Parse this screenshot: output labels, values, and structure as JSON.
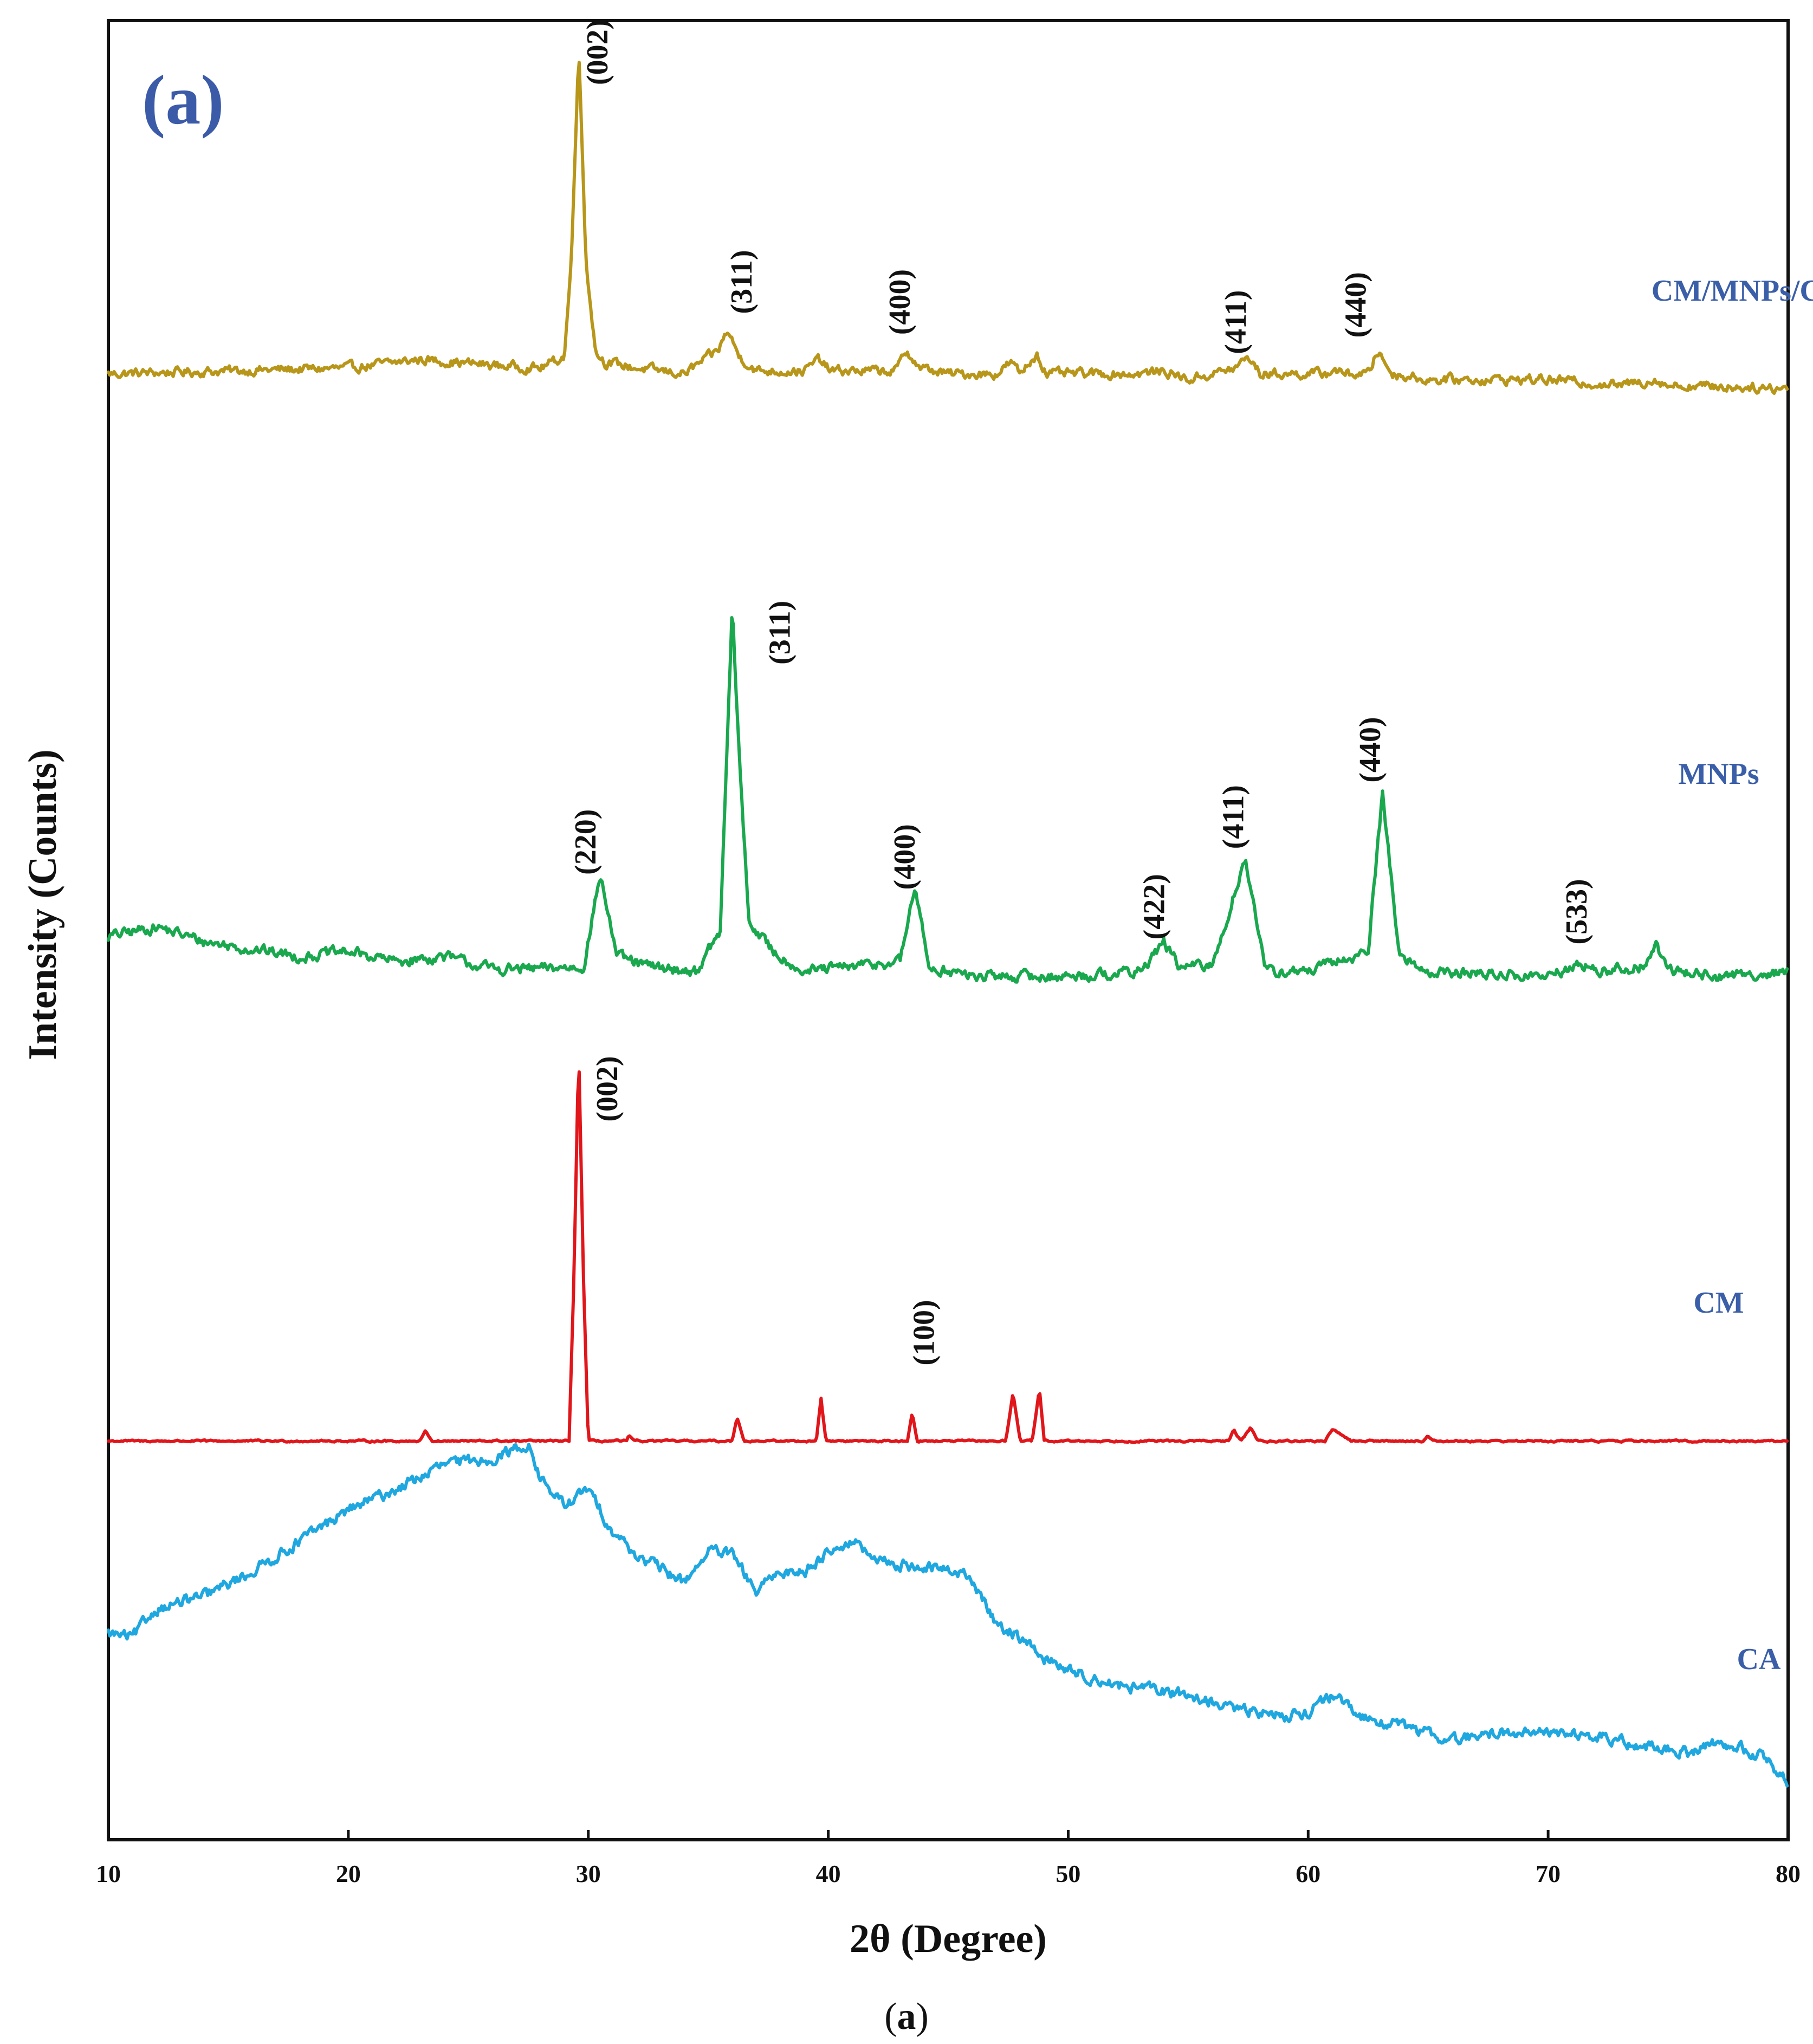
{
  "panel_tag": "(a)",
  "caption": {
    "open": "(",
    "letter": "a",
    "close": ")"
  },
  "chart_data": {
    "type": "line",
    "title": "",
    "xlabel": "2θ (Degree)",
    "ylabel": "Intensity (Counts)",
    "xlim": [
      10,
      80
    ],
    "xticks": [
      10,
      20,
      30,
      40,
      50,
      60,
      70,
      80
    ],
    "yticks": [],
    "grid": false,
    "legend": "inline labels on right",
    "series": [
      {
        "name": "CM/MNPs/CA",
        "color": "#b8961a",
        "noise": 3,
        "points": [
          [
            10,
            0
          ],
          [
            20,
            2
          ],
          [
            23,
            5
          ],
          [
            26,
            3
          ],
          [
            28,
            2
          ],
          [
            29,
            6
          ],
          [
            29.3,
            40
          ],
          [
            29.6,
            115
          ],
          [
            29.9,
            40
          ],
          [
            30.3,
            8
          ],
          [
            30.7,
            4
          ],
          [
            32,
            2
          ],
          [
            34,
            0
          ],
          [
            35.4,
            8
          ],
          [
            35.8,
            15
          ],
          [
            36.3,
            6
          ],
          [
            37,
            1
          ],
          [
            39,
            1
          ],
          [
            39.6,
            5
          ],
          [
            40.1,
            1
          ],
          [
            42.8,
            1
          ],
          [
            43.3,
            8
          ],
          [
            43.8,
            2
          ],
          [
            45,
            0
          ],
          [
            47,
            0
          ],
          [
            47.6,
            4
          ],
          [
            48,
            0
          ],
          [
            48.7,
            7
          ],
          [
            49.1,
            0
          ],
          [
            53,
            0
          ],
          [
            54,
            1
          ],
          [
            55,
            -2
          ],
          [
            57,
            2
          ],
          [
            57.5,
            6
          ],
          [
            58,
            0
          ],
          [
            60.8,
            0
          ],
          [
            61.1,
            2
          ],
          [
            61.4,
            0
          ],
          [
            62.5,
            0
          ],
          [
            62.9,
            8
          ],
          [
            63.5,
            0
          ],
          [
            65,
            -2
          ],
          [
            70,
            -2
          ],
          [
            73,
            -4
          ],
          [
            74.5,
            -2
          ],
          [
            75,
            -4
          ],
          [
            80,
            -5
          ]
        ],
        "peaks": [
          {
            "label": "(002)",
            "x": 30.8,
            "y": 112
          },
          {
            "label": "(311)",
            "x": 36.8,
            "y": 32
          },
          {
            "label": "(400)",
            "x": 43.4,
            "y": 25
          },
          {
            "label": "(411)",
            "x": 57.4,
            "y": 18
          },
          {
            "label": "(440)",
            "x": 62.4,
            "y": 24
          }
        ]
      },
      {
        "name": "MNPs",
        "color": "#1aa84e",
        "noise": 4,
        "points": [
          [
            10,
            10
          ],
          [
            12,
            14
          ],
          [
            14,
            8
          ],
          [
            16,
            5
          ],
          [
            18,
            2
          ],
          [
            20,
            4
          ],
          [
            22,
            0
          ],
          [
            24,
            2
          ],
          [
            26,
            -3
          ],
          [
            28,
            -3
          ],
          [
            29.8,
            -2
          ],
          [
            30.5,
            35
          ],
          [
            31.2,
            2
          ],
          [
            32.5,
            -2
          ],
          [
            34.5,
            -4
          ],
          [
            35.5,
            12
          ],
          [
            35.8,
            90
          ],
          [
            36.0,
            142
          ],
          [
            36.3,
            80
          ],
          [
            36.7,
            16
          ],
          [
            37.7,
            4
          ],
          [
            39,
            -4
          ],
          [
            43,
            0
          ],
          [
            43.6,
            30
          ],
          [
            44.2,
            -2
          ],
          [
            46,
            -6
          ],
          [
            50,
            -6
          ],
          [
            53,
            -4
          ],
          [
            54,
            8
          ],
          [
            54.6,
            -2
          ],
          [
            56,
            -2
          ],
          [
            57.4,
            42
          ],
          [
            58.2,
            -4
          ],
          [
            60,
            -4
          ],
          [
            62.5,
            4
          ],
          [
            63.1,
            68
          ],
          [
            63.8,
            2
          ],
          [
            65,
            -4
          ],
          [
            70,
            -6
          ],
          [
            71.5,
            -1
          ],
          [
            72,
            -4
          ],
          [
            74,
            -2
          ],
          [
            74.5,
            6
          ],
          [
            75,
            -3
          ],
          [
            77,
            -6
          ],
          [
            80,
            -4
          ]
        ],
        "peaks": [
          {
            "label": "(220)",
            "x": 30.3,
            "y": 48
          },
          {
            "label": "(311)",
            "x": 38.4,
            "y": 132
          },
          {
            "label": "(400)",
            "x": 43.6,
            "y": 42
          },
          {
            "label": "(422)",
            "x": 54.0,
            "y": 22
          },
          {
            "label": "(411)",
            "x": 57.3,
            "y": 58
          },
          {
            "label": "(440)",
            "x": 63.0,
            "y": 85
          },
          {
            "label": "(533)",
            "x": 71.6,
            "y": 20
          }
        ]
      },
      {
        "name": "CM",
        "color": "#e0161b",
        "noise": 0.6,
        "points": [
          [
            10,
            0
          ],
          [
            23,
            0
          ],
          [
            23.2,
            4
          ],
          [
            23.5,
            0
          ],
          [
            29.2,
            0
          ],
          [
            29.4,
            60
          ],
          [
            29.6,
            145
          ],
          [
            29.8,
            60
          ],
          [
            30.0,
            0
          ],
          [
            31.6,
            0
          ],
          [
            31.7,
            2
          ],
          [
            31.9,
            0
          ],
          [
            36,
            0
          ],
          [
            36.2,
            9
          ],
          [
            36.5,
            0
          ],
          [
            39.5,
            0
          ],
          [
            39.7,
            16
          ],
          [
            39.9,
            0
          ],
          [
            43.3,
            0
          ],
          [
            43.5,
            11
          ],
          [
            43.7,
            0
          ],
          [
            47.4,
            0
          ],
          [
            47.7,
            18
          ],
          [
            48,
            0
          ],
          [
            48.5,
            0
          ],
          [
            48.8,
            19
          ],
          [
            49,
            0
          ],
          [
            56.7,
            0
          ],
          [
            56.9,
            4
          ],
          [
            57.2,
            0
          ],
          [
            57.6,
            5
          ],
          [
            57.9,
            0
          ],
          [
            60.7,
            0
          ],
          [
            61,
            4
          ],
          [
            61.5,
            2
          ],
          [
            61.8,
            0
          ],
          [
            64.8,
            0
          ],
          [
            65,
            2
          ],
          [
            65.2,
            0
          ],
          [
            80,
            0
          ]
        ],
        "peaks": [
          {
            "label": "(002)",
            "x": 31.2,
            "y": 130
          },
          {
            "label": "(100)",
            "x": 44.4,
            "y": 40
          }
        ]
      },
      {
        "name": "CA",
        "color": "#1fa7df",
        "noise": 5,
        "points": [
          [
            10,
            0
          ],
          [
            11,
            -2
          ],
          [
            12,
            12
          ],
          [
            14,
            18
          ],
          [
            16,
            30
          ],
          [
            18,
            45
          ],
          [
            20,
            60
          ],
          [
            22,
            70
          ],
          [
            24,
            82
          ],
          [
            26,
            85
          ],
          [
            27.5,
            92
          ],
          [
            28,
            75
          ],
          [
            29,
            62
          ],
          [
            30,
            70
          ],
          [
            31,
            50
          ],
          [
            32,
            38
          ],
          [
            34,
            25
          ],
          [
            35,
            40
          ],
          [
            36,
            38
          ],
          [
            37,
            20
          ],
          [
            38,
            30
          ],
          [
            39,
            30
          ],
          [
            40,
            40
          ],
          [
            41,
            45
          ],
          [
            42,
            35
          ],
          [
            44,
            32
          ],
          [
            45.5,
            30
          ],
          [
            46,
            25
          ],
          [
            47,
            5
          ],
          [
            48,
            -2
          ],
          [
            49,
            -12
          ],
          [
            50,
            -18
          ],
          [
            52,
            -25
          ],
          [
            55,
            -30
          ],
          [
            57,
            -37
          ],
          [
            59,
            -40
          ],
          [
            60,
            -38
          ],
          [
            61,
            -30
          ],
          [
            62,
            -40
          ],
          [
            64,
            -45
          ],
          [
            66,
            -52
          ],
          [
            68,
            -48
          ],
          [
            70,
            -48
          ],
          [
            72,
            -50
          ],
          [
            74,
            -55
          ],
          [
            76,
            -58
          ],
          [
            77,
            -52
          ],
          [
            79,
            -60
          ],
          [
            80,
            -72
          ]
        ],
        "peaks": []
      }
    ]
  }
}
